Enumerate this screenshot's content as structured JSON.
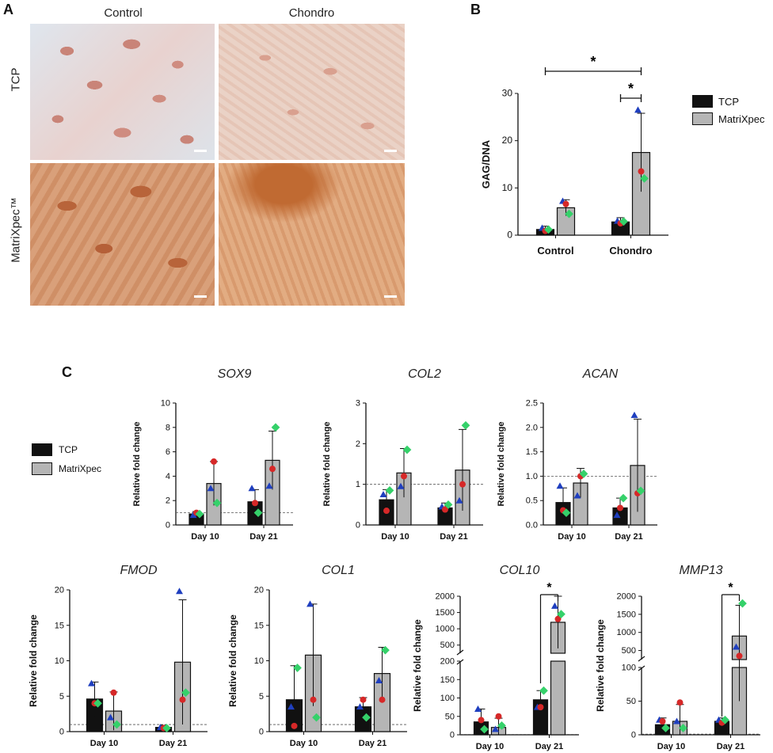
{
  "panels": {
    "a": "A",
    "b": "B",
    "c": "C"
  },
  "micrographs": {
    "col_labels": [
      "Control",
      "Chondro"
    ],
    "row_labels": [
      "TCP",
      "MatriXpec™"
    ]
  },
  "legend": {
    "tcp": "TCP",
    "matrixpec": "MatriXpec",
    "tcp_color": "#111111",
    "matrixpec_color": "#b5b5b5"
  },
  "marker_colors": {
    "rep1": "#1f3fbf",
    "rep2": "#d62828",
    "rep3": "#35d16a"
  },
  "chart_data": [
    {
      "id": "gag",
      "type": "bar",
      "title": "",
      "ylabel": "GAG/DNA",
      "categories": [
        "Control",
        "Chondro"
      ],
      "ylim": [
        0,
        30
      ],
      "yticks": [
        "0",
        "10",
        "20",
        "30"
      ],
      "series": [
        {
          "name": "TCP",
          "values": [
            1.2,
            2.8
          ],
          "errors": [
            0.7,
            0.9
          ],
          "points": [
            [
              1.5,
              0.9,
              1.2
            ],
            [
              3.0,
              2.5,
              2.9
            ]
          ]
        },
        {
          "name": "MatriXpec",
          "values": [
            5.8,
            17.5
          ],
          "errors": [
            1.7,
            8.3
          ],
          "points": [
            [
              7.2,
              6.6,
              4.5
            ],
            [
              26.5,
              13.5,
              12.0
            ]
          ]
        }
      ],
      "significance": [
        "*",
        "*"
      ]
    },
    {
      "id": "sox9",
      "type": "bar",
      "title": "SOX9",
      "ylabel": "Relative fold change",
      "categories": [
        "Day 10",
        "Day 21"
      ],
      "ylim": [
        0,
        10
      ],
      "yticks": [
        "0",
        "2",
        "4",
        "6",
        "8",
        "10"
      ],
      "series": [
        {
          "name": "TCP",
          "values": [
            0.9,
            1.9
          ],
          "errors": [
            0.2,
            1.0
          ],
          "points": [
            [
              0.8,
              1.0,
              0.9
            ],
            [
              3.0,
              1.8,
              1.0
            ]
          ]
        },
        {
          "name": "MatriXpec",
          "values": [
            3.4,
            5.3
          ],
          "errors": [
            1.8,
            2.4
          ],
          "points": [
            [
              3.0,
              5.2,
              1.8
            ],
            [
              3.2,
              4.6,
              8.0
            ]
          ]
        }
      ]
    },
    {
      "id": "col2",
      "type": "bar",
      "title": "COL2",
      "ylabel": "Relative fold change",
      "categories": [
        "Day 10",
        "Day 21"
      ],
      "ylim": [
        0,
        3
      ],
      "yticks": [
        "0",
        "1",
        "2",
        "3"
      ],
      "series": [
        {
          "name": "TCP",
          "values": [
            0.62,
            0.42
          ],
          "errors": [
            0.25,
            0.12
          ],
          "points": [
            [
              0.75,
              0.35,
              0.85
            ],
            [
              0.45,
              0.38,
              0.5
            ]
          ]
        },
        {
          "name": "MatriXpec",
          "values": [
            1.28,
            1.35
          ],
          "errors": [
            0.6,
            1.0
          ],
          "points": [
            [
              0.95,
              1.2,
              1.85
            ],
            [
              0.6,
              1.0,
              2.45
            ]
          ]
        }
      ]
    },
    {
      "id": "acan",
      "type": "bar",
      "title": "ACAN",
      "ylabel": "Relative fold change",
      "categories": [
        "Day 10",
        "Day 21"
      ],
      "ylim": [
        0,
        2.5
      ],
      "yticks": [
        "0.0",
        "0.5",
        "1.0",
        "1.5",
        "2.0",
        "2.5"
      ],
      "series": [
        {
          "name": "TCP",
          "values": [
            0.46,
            0.35
          ],
          "errors": [
            0.3,
            0.2
          ],
          "points": [
            [
              0.8,
              0.3,
              0.25
            ],
            [
              0.2,
              0.35,
              0.55
            ]
          ]
        },
        {
          "name": "MatriXpec",
          "values": [
            0.86,
            1.22
          ],
          "errors": [
            0.3,
            0.95
          ],
          "points": [
            [
              0.6,
              1.0,
              1.05
            ],
            [
              2.25,
              0.65,
              0.7
            ]
          ]
        }
      ]
    },
    {
      "id": "fmod",
      "type": "bar",
      "title": "FMOD",
      "ylabel": "Relative fold change",
      "categories": [
        "Day 10",
        "Day 21"
      ],
      "ylim": [
        0,
        20
      ],
      "yticks": [
        "0",
        "5",
        "10",
        "15",
        "20"
      ],
      "series": [
        {
          "name": "TCP",
          "values": [
            4.6,
            0.6
          ],
          "errors": [
            2.4,
            0.3
          ],
          "points": [
            [
              6.8,
              4.0,
              4.0
            ],
            [
              0.6,
              0.5,
              0.5
            ]
          ]
        },
        {
          "name": "MatriXpec",
          "values": [
            2.9,
            9.8
          ],
          "errors": [
            2.7,
            8.8
          ],
          "points": [
            [
              2.0,
              5.5,
              1.0
            ],
            [
              19.8,
              4.5,
              5.5
            ]
          ]
        }
      ]
    },
    {
      "id": "col1",
      "type": "bar",
      "title": "COL1",
      "ylabel": "Relative fold change",
      "categories": [
        "Day 10",
        "Day 21"
      ],
      "ylim": [
        0,
        20
      ],
      "yticks": [
        "0",
        "5",
        "10",
        "15",
        "20"
      ],
      "series": [
        {
          "name": "TCP",
          "values": [
            4.5,
            3.5
          ],
          "errors": [
            4.8,
            1.3
          ],
          "points": [
            [
              3.5,
              0.8,
              9.0
            ],
            [
              3.5,
              4.5,
              2.0
            ]
          ]
        },
        {
          "name": "MatriXpec",
          "values": [
            10.8,
            8.2
          ],
          "errors": [
            7.2,
            3.7
          ],
          "points": [
            [
              18.0,
              4.5,
              2.0
            ],
            [
              7.2,
              4.5,
              11.5
            ]
          ]
        }
      ]
    },
    {
      "id": "col10",
      "type": "bar",
      "title": "COL10",
      "ylabel": "Relative fold change",
      "categories": [
        "Day 10",
        "Day 21"
      ],
      "broken_axis": true,
      "yticks_lower": [
        "0",
        "50",
        "100",
        "150",
        "200"
      ],
      "yticks_upper": [
        "500",
        "1000",
        "1500",
        "2000"
      ],
      "series": [
        {
          "name": "TCP",
          "values": [
            35,
            95
          ],
          "errors": [
            35,
            25
          ],
          "points": [
            [
              70,
              40,
              15
            ],
            [
              75,
              75,
              120
            ]
          ]
        },
        {
          "name": "MatriXpec",
          "values": [
            20,
            1200
          ],
          "errors": [
            25,
            800
          ],
          "points": [
            [
              15,
              50,
              25
            ],
            [
              1700,
              1300,
              1450
            ]
          ]
        }
      ],
      "significance": [
        "*"
      ]
    },
    {
      "id": "mmp13",
      "type": "bar",
      "title": "MMP13",
      "ylabel": "Relative fold change",
      "categories": [
        "Day 10",
        "Day 21"
      ],
      "broken_axis": true,
      "yticks_lower": [
        "0",
        "50",
        "100"
      ],
      "yticks_upper": [
        "500",
        "1000",
        "1500",
        "2000"
      ],
      "series": [
        {
          "name": "TCP",
          "values": [
            15,
            20
          ],
          "errors": [
            10,
            5
          ],
          "points": [
            [
              22,
              20,
              10
            ],
            [
              22,
              18,
              22
            ]
          ]
        },
        {
          "name": "MatriXpec",
          "values": [
            20,
            900
          ],
          "errors": [
            25,
            850
          ],
          "points": [
            [
              20,
              48,
              10
            ],
            [
              600,
              350,
              1800
            ]
          ]
        }
      ],
      "significance": [
        "*"
      ]
    }
  ]
}
